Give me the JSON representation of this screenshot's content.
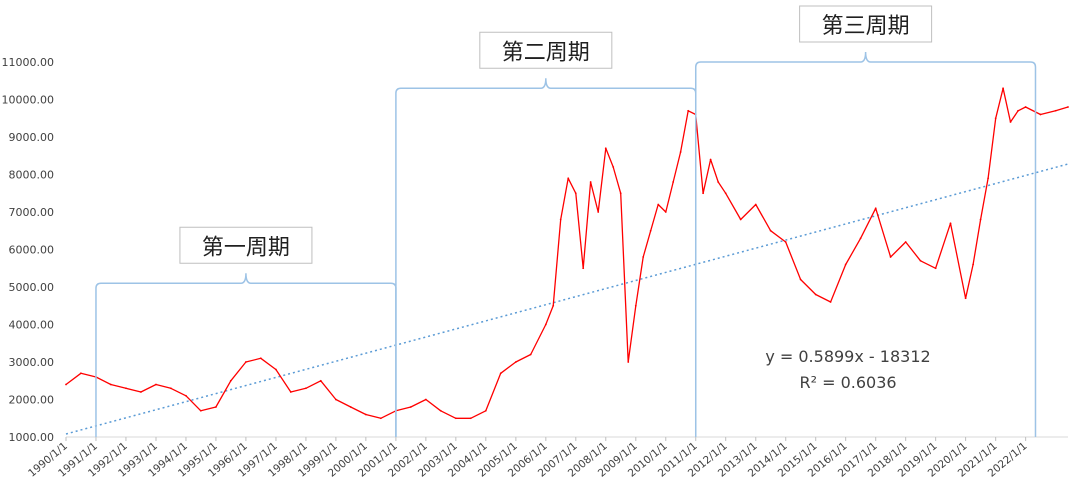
{
  "chart_data": {
    "type": "line",
    "title": "",
    "xlabel": "",
    "ylabel": "",
    "ylim": [
      1000,
      11000
    ],
    "xlim": [
      "1990-01-01",
      "2023-06-01"
    ],
    "grid": false,
    "legend": "none",
    "y_ticks": [
      "1000.00",
      "2000.00",
      "3000.00",
      "4000.00",
      "5000.00",
      "6000.00",
      "7000.00",
      "8000.00",
      "9000.00",
      "10000.00",
      "11000.00"
    ],
    "x_ticks": [
      "1990/1/1",
      "1991/1/1",
      "1992/1/1",
      "1993/1/1",
      "1994/1/1",
      "1995/1/1",
      "1996/1/1",
      "1997/1/1",
      "1998/1/1",
      "1999/1/1",
      "2000/1/1",
      "2001/1/1",
      "2002/1/1",
      "2003/1/1",
      "2004/1/1",
      "2005/1/1",
      "2006/1/1",
      "2007/1/1",
      "2008/1/1",
      "2009/1/1",
      "2010/1/1",
      "2011/1/1",
      "2012/1/1",
      "2013/1/1",
      "2014/1/1",
      "2015/1/1",
      "2016/1/1",
      "2017/1/1",
      "2018/1/1",
      "2019/1/1",
      "2020/1/1",
      "2021/1/1",
      "2022/1/1"
    ],
    "series": [
      {
        "color": "#ff0000",
        "x": [
          "1990-01-01",
          "1990-07-01",
          "1991-01-01",
          "1991-07-01",
          "1992-01-01",
          "1992-07-01",
          "1993-01-01",
          "1993-07-01",
          "1994-01-01",
          "1994-07-01",
          "1995-01-01",
          "1995-07-01",
          "1996-01-01",
          "1996-07-01",
          "1997-01-01",
          "1997-07-01",
          "1998-01-01",
          "1998-07-01",
          "1999-01-01",
          "1999-07-01",
          "2000-01-01",
          "2000-07-01",
          "2001-01-01",
          "2001-07-01",
          "2002-01-01",
          "2002-07-01",
          "2003-01-01",
          "2003-07-01",
          "2004-01-01",
          "2004-07-01",
          "2005-01-01",
          "2005-07-01",
          "2006-01-01",
          "2006-04-01",
          "2006-07-01",
          "2006-10-01",
          "2007-01-01",
          "2007-04-01",
          "2007-07-01",
          "2007-10-01",
          "2008-01-01",
          "2008-04-01",
          "2008-07-01",
          "2008-10-01",
          "2009-01-01",
          "2009-04-01",
          "2009-07-01",
          "2009-10-01",
          "2010-01-01",
          "2010-04-01",
          "2010-07-01",
          "2010-10-01",
          "2011-01-01",
          "2011-04-01",
          "2011-07-01",
          "2011-10-01",
          "2012-01-01",
          "2012-07-01",
          "2013-01-01",
          "2013-07-01",
          "2014-01-01",
          "2014-07-01",
          "2015-01-01",
          "2015-07-01",
          "2016-01-01",
          "2016-07-01",
          "2017-01-01",
          "2017-07-01",
          "2018-01-01",
          "2018-07-01",
          "2019-01-01",
          "2019-07-01",
          "2020-01-01",
          "2020-04-01",
          "2020-07-01",
          "2020-10-01",
          "2021-01-01",
          "2021-04-01",
          "2021-07-01",
          "2021-10-01",
          "2022-01-01",
          "2022-07-01",
          "2023-01-01",
          "2023-06-01"
        ],
        "values": [
          2400,
          2700,
          2600,
          2400,
          2300,
          2200,
          2400,
          2300,
          2100,
          1700,
          1800,
          2500,
          3000,
          3100,
          2800,
          2200,
          2300,
          2500,
          2000,
          1800,
          1600,
          1500,
          1700,
          1800,
          2000,
          1700,
          1500,
          1500,
          1700,
          2700,
          3000,
          3200,
          4000,
          4500,
          6800,
          7900,
          7500,
          5500,
          7800,
          7000,
          8700,
          8200,
          7500,
          3000,
          4500,
          5800,
          6500,
          7200,
          7000,
          7800,
          8600,
          9700,
          9600,
          7500,
          8400,
          7800,
          7500,
          6800,
          7200,
          6500,
          6200,
          5200,
          4800,
          4600,
          5600,
          6300,
          7100,
          5800,
          6200,
          5700,
          5500,
          6700,
          4700,
          5600,
          6800,
          7900,
          9500,
          10300,
          9400,
          9700,
          9800,
          9600,
          9700,
          9800
        ]
      }
    ],
    "trendline": {
      "style": "dotted",
      "color": "#5b9bd5",
      "equation": "y = 0.5899x - 18312",
      "r2": "R² = 0.6036",
      "slope": 0.5899,
      "intercept": -18312,
      "x_epoch": "1899-12-30"
    },
    "cycles": [
      {
        "label": "第一周期",
        "start": "1991-01-01",
        "end": "2001-01-01",
        "level": 5100
      },
      {
        "label": "第二周期",
        "start": "2001-01-01",
        "end": "2011-01-01",
        "level": 10300
      },
      {
        "label": "第三周期",
        "start": "2011-01-01",
        "end": "2022-05-01",
        "level": 11000
      }
    ]
  }
}
